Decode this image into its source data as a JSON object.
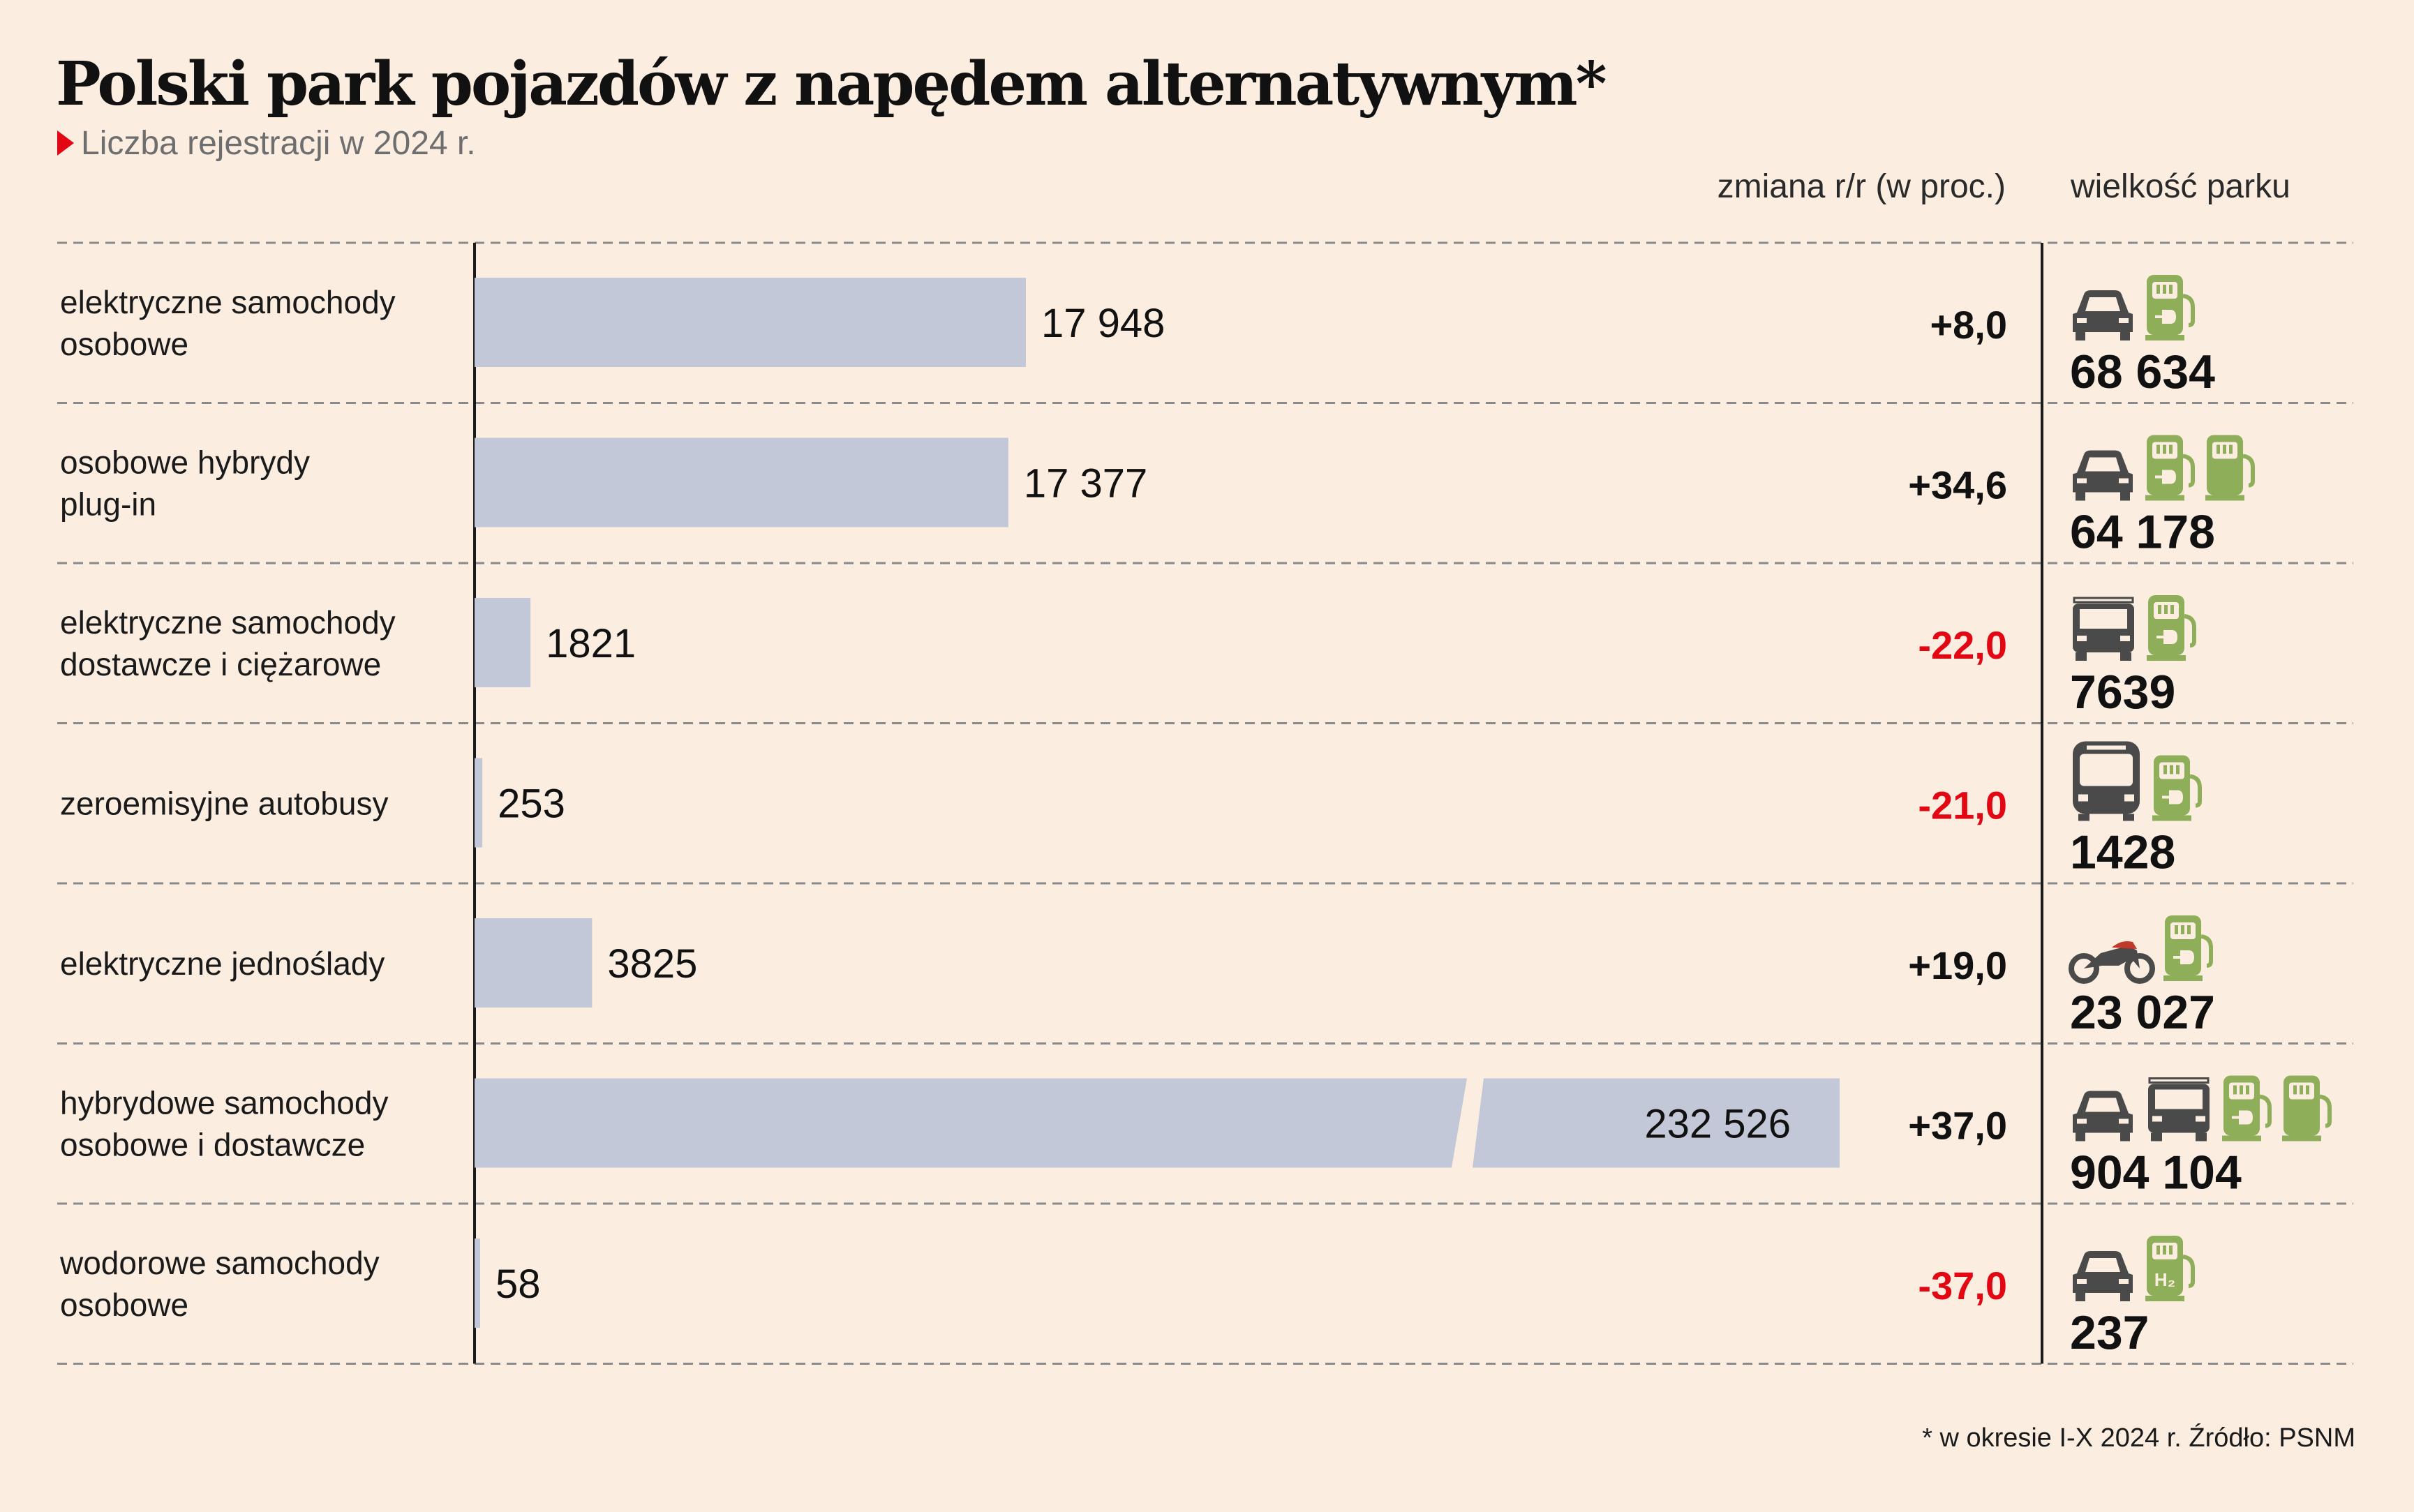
{
  "title": "Polski park pojazdów z napędem alternatywnym*",
  "subtitle": "Liczba rejestracji w 2024 r.",
  "column_headers": {
    "change": "zmiana r/r (w proc.)",
    "fleet": "wielkość parku"
  },
  "footnote": "* w okresie I-X 2024 r. Źródło: PSNM",
  "colors": {
    "background": "#fbeee1",
    "bar": "#c3c8d8",
    "negative": "#e30613",
    "icon_vehicle": "#4a4a4a",
    "icon_charger": "#8fae5a"
  },
  "chart_data": {
    "type": "bar",
    "orientation": "horizontal",
    "series": [
      {
        "values": [
          17948,
          17377,
          1821,
          253,
          3825,
          232526,
          58
        ]
      }
    ],
    "broken_axis_for": "hybrydowe samochody osobowe i dostawcze",
    "rows": [
      {
        "label": "elektryczne samochody osobowe",
        "value": 17948,
        "value_label": "17 948",
        "change": 8.0,
        "change_label": "+8,0",
        "fleet": 68634,
        "fleet_label": "68 634",
        "icons": [
          "car-icon",
          "ev-charger-icon"
        ]
      },
      {
        "label": "osobowe hybrydy plug-in",
        "value": 17377,
        "value_label": "17 377",
        "change": 34.6,
        "change_label": "+34,6",
        "fleet": 64178,
        "fleet_label": "64 178",
        "icons": [
          "car-icon",
          "ev-charger-icon",
          "fuel-pump-icon"
        ]
      },
      {
        "label": "elektryczne samochody dostawcze i ciężarowe",
        "value": 1821,
        "value_label": "1821",
        "change": -22.0,
        "change_label": "-22,0",
        "fleet": 7639,
        "fleet_label": "7639",
        "icons": [
          "truck-icon",
          "ev-charger-icon"
        ]
      },
      {
        "label": "zeroemisyjne autobusy",
        "value": 253,
        "value_label": "253",
        "change": -21.0,
        "change_label": "-21,0",
        "fleet": 1428,
        "fleet_label": "1428",
        "icons": [
          "bus-icon",
          "ev-charger-icon"
        ]
      },
      {
        "label": "elektryczne jednoślady",
        "value": 3825,
        "value_label": "3825",
        "change": 19.0,
        "change_label": "+19,0",
        "fleet": 23027,
        "fleet_label": "23 027",
        "icons": [
          "motorcycle-icon",
          "ev-charger-icon"
        ]
      },
      {
        "label": "hybrydowe samochody osobowe i dostawcze",
        "value": 232526,
        "value_label": "232 526",
        "change": 37.0,
        "change_label": "+37,0",
        "fleet": 904104,
        "fleet_label": "904 104",
        "icons": [
          "car-icon",
          "truck-icon",
          "ev-charger-icon",
          "fuel-pump-icon"
        ]
      },
      {
        "label": "wodorowe samochody osobowe",
        "value": 58,
        "value_label": "58",
        "change": -37.0,
        "change_label": "-37,0",
        "fleet": 237,
        "fleet_label": "237",
        "icons": [
          "car-icon",
          "hydrogen-pump-icon"
        ],
        "hydrogen_label": "H₂"
      }
    ]
  }
}
